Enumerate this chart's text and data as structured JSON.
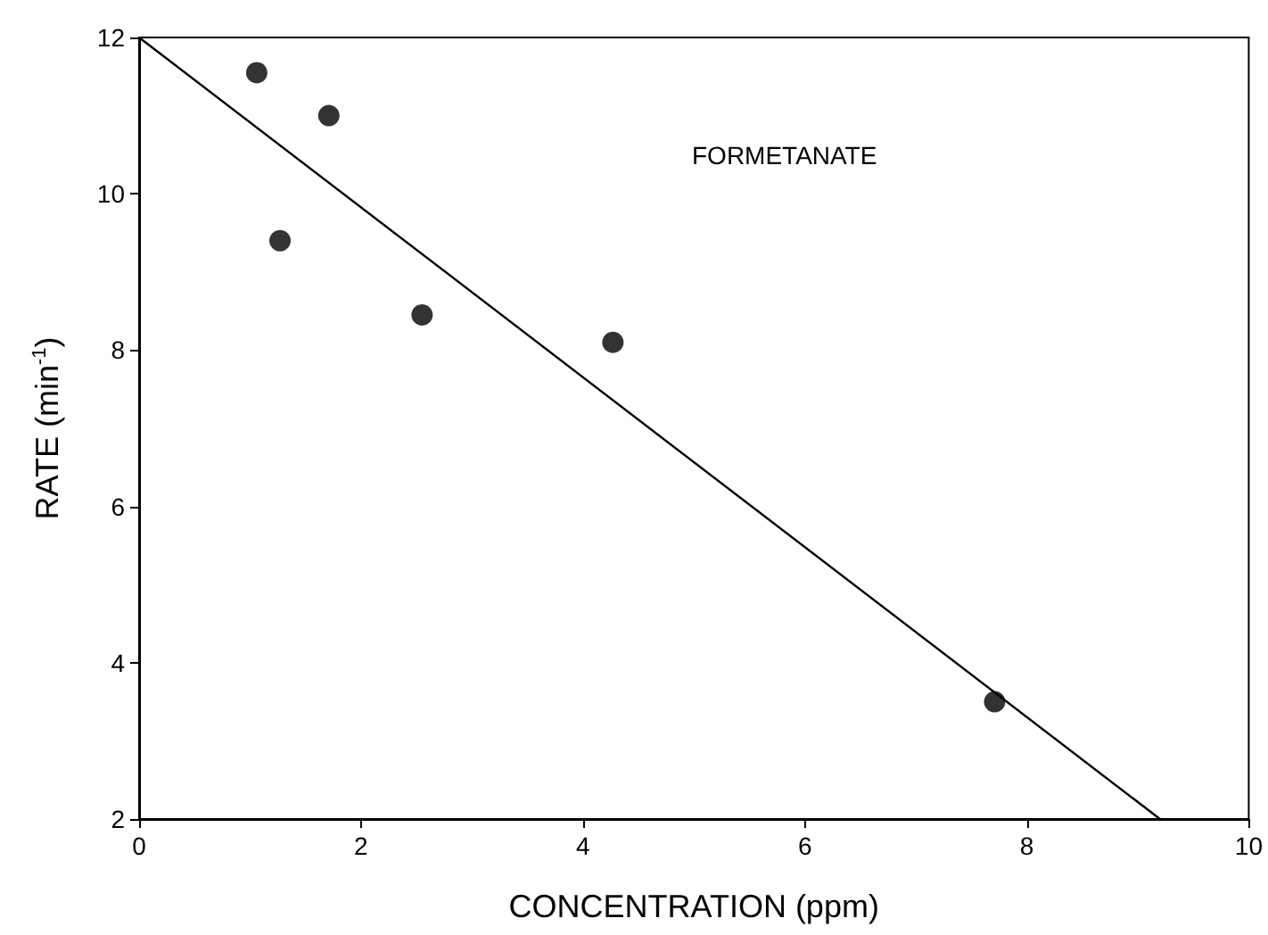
{
  "chart_data": {
    "type": "scatter",
    "xlabel": "CONCENTRATION (ppm)",
    "ylabel": "RATE (min$^{-1}$)",
    "annotations": [
      "FORMETANATE"
    ],
    "xlim": [
      0,
      10
    ],
    "xticks": [
      0,
      2,
      4,
      6,
      8,
      10
    ],
    "ylim": [
      2,
      12
    ],
    "yticks": [
      2,
      4,
      6,
      8,
      10,
      12
    ],
    "grid": false,
    "marker": "circle",
    "series": [
      {
        "color": "#000000",
        "x": [
          1.06,
          1.27,
          1.71,
          2.55,
          4.27,
          7.71
        ],
        "values": [
          11.55,
          9.4,
          11.0,
          8.45,
          8.1,
          3.5
        ]
      },
      {
        "type": "line",
        "color": "#000000",
        "marker": "none",
        "line_style": "solid",
        "x": [
          0,
          9.2
        ],
        "values": [
          12,
          2
        ]
      }
    ]
  }
}
